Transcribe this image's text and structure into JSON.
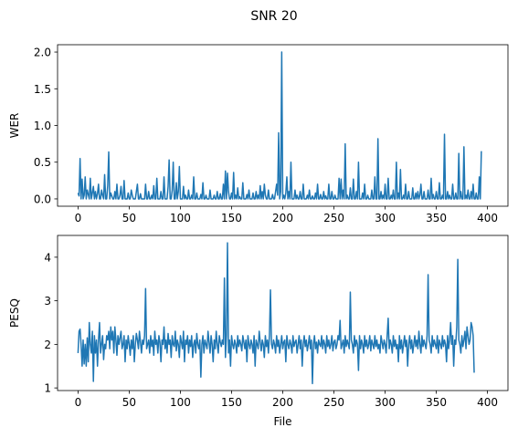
{
  "figure": {
    "suptitle": "SNR 20"
  },
  "chart_data": [
    {
      "type": "line",
      "title": "",
      "xlabel": "",
      "ylabel": "WER",
      "xlim": [
        -20,
        420
      ],
      "ylim": [
        -0.1,
        2.1
      ],
      "xticks": [
        0,
        50,
        100,
        150,
        200,
        250,
        300,
        350,
        400
      ],
      "yticks": [
        0.0,
        0.5,
        1.0,
        1.5,
        2.0
      ],
      "ytick_labels": [
        "0.0",
        "0.5",
        "1.0",
        "1.5",
        "2.0"
      ],
      "color": "#1f77b4",
      "series": [
        {
          "x_start": 0,
          "x_step": 1,
          "values": [
            0.08,
            0.04,
            0.55,
            0.0,
            0.27,
            0.0,
            0.05,
            0.3,
            0.0,
            0.12,
            0.06,
            0.0,
            0.28,
            0.0,
            0.08,
            0.17,
            0.0,
            0.1,
            0.0,
            0.07,
            0.2,
            0.0,
            0.0,
            0.12,
            0.05,
            0.0,
            0.33,
            0.0,
            0.0,
            0.18,
            0.64,
            0.0,
            0.08,
            0.04,
            0.0,
            0.0,
            0.1,
            0.0,
            0.2,
            0.0,
            0.0,
            0.05,
            0.17,
            0.0,
            0.0,
            0.25,
            0.0,
            0.0,
            0.0,
            0.08,
            0.0,
            0.0,
            0.12,
            0.05,
            0.0,
            0.0,
            0.0,
            0.1,
            0.2,
            0.0,
            0.0,
            0.07,
            0.0,
            0.0,
            0.0,
            0.0,
            0.2,
            0.0,
            0.0,
            0.1,
            0.0,
            0.0,
            0.05,
            0.0,
            0.18,
            0.0,
            0.0,
            0.28,
            0.0,
            0.0,
            0.0,
            0.1,
            0.0,
            0.0,
            0.3,
            0.0,
            0.0,
            0.0,
            0.17,
            0.53,
            0.0,
            0.0,
            0.12,
            0.5,
            0.0,
            0.0,
            0.22,
            0.0,
            0.1,
            0.44,
            0.0,
            0.0,
            0.0,
            0.17,
            0.0,
            0.05,
            0.0,
            0.0,
            0.12,
            0.0,
            0.0,
            0.05,
            0.0,
            0.3,
            0.0,
            0.0,
            0.08,
            0.0,
            0.0,
            0.0,
            0.06,
            0.0,
            0.22,
            0.0,
            0.0,
            0.05,
            0.0,
            0.0,
            0.0,
            0.12,
            0.0,
            0.0,
            0.0,
            0.05,
            0.0,
            0.0,
            0.1,
            0.0,
            0.0,
            0.07,
            0.0,
            0.0,
            0.2,
            0.0,
            0.38,
            0.0,
            0.35,
            0.1,
            0.0,
            0.0,
            0.08,
            0.0,
            0.36,
            0.0,
            0.05,
            0.0,
            0.15,
            0.0,
            0.03,
            0.0,
            0.0,
            0.22,
            0.0,
            0.0,
            0.0,
            0.06,
            0.0,
            0.12,
            0.0,
            0.0,
            0.0,
            0.08,
            0.0,
            0.0,
            0.1,
            0.0,
            0.05,
            0.0,
            0.18,
            0.0,
            0.1,
            0.0,
            0.2,
            0.05,
            0.0,
            0.0,
            0.12,
            0.0,
            0.0,
            0.0,
            0.06,
            0.0,
            0.0,
            0.1,
            0.2,
            0.05,
            0.9,
            0.0,
            0.1,
            2.0,
            0.0,
            0.05,
            0.0,
            0.08,
            0.3,
            0.0,
            0.1,
            0.0,
            0.5,
            0.0,
            0.0,
            0.0,
            0.12,
            0.0,
            0.05,
            0.0,
            0.0,
            0.1,
            0.0,
            0.0,
            0.2,
            0.0,
            0.0,
            0.0,
            0.05,
            0.0,
            0.12,
            0.0,
            0.0,
            0.04,
            0.0,
            0.0,
            0.08,
            0.0,
            0.2,
            0.0,
            0.0,
            0.06,
            0.0,
            0.0,
            0.1,
            0.0,
            0.04,
            0.0,
            0.0,
            0.2,
            0.0,
            0.0,
            0.1,
            0.0,
            0.0,
            0.05,
            0.0,
            0.0,
            0.0,
            0.28,
            0.0,
            0.27,
            0.0,
            0.12,
            0.0,
            0.75,
            0.0,
            0.05,
            0.0,
            0.0,
            0.15,
            0.0,
            0.0,
            0.27,
            0.0,
            0.0,
            0.1,
            0.0,
            0.5,
            0.0,
            0.0,
            0.0,
            0.08,
            0.0,
            0.2,
            0.0,
            0.0,
            0.05,
            0.0,
            0.0,
            0.0,
            0.12,
            0.0,
            0.0,
            0.3,
            0.0,
            0.0,
            0.82,
            0.0,
            0.0,
            0.1,
            0.0,
            0.05,
            0.0,
            0.2,
            0.0,
            0.0,
            0.28,
            0.0,
            0.0,
            0.05,
            0.0,
            0.12,
            0.0,
            0.0,
            0.5,
            0.0,
            0.08,
            0.0,
            0.4,
            0.0,
            0.0,
            0.05,
            0.0,
            0.2,
            0.0,
            0.0,
            0.1,
            0.0,
            0.0,
            0.0,
            0.15,
            0.0,
            0.0,
            0.08,
            0.0,
            0.1,
            0.0,
            0.05,
            0.2,
            0.0,
            0.0,
            0.1,
            0.0,
            0.0,
            0.0,
            0.12,
            0.0,
            0.0,
            0.28,
            0.0,
            0.06,
            0.0,
            0.0,
            0.1,
            0.0,
            0.0,
            0.22,
            0.0,
            0.0,
            0.05,
            0.0,
            0.88,
            0.0,
            0.0,
            0.1,
            0.0,
            0.05,
            0.0,
            0.0,
            0.2,
            0.0,
            0.0,
            0.08,
            0.0,
            0.0,
            0.62,
            0.0,
            0.1,
            0.0,
            0.0,
            0.71,
            0.0,
            0.05,
            0.0,
            0.12,
            0.0,
            0.0,
            0.1,
            0.0,
            0.2,
            0.0,
            0.0,
            0.08,
            0.0,
            0.0,
            0.3,
            0.0,
            0.65
          ]
        }
      ]
    },
    {
      "type": "line",
      "title": "",
      "xlabel": "File",
      "ylabel": "PESQ",
      "xlim": [
        -20,
        420
      ],
      "ylim": [
        0.94,
        4.5
      ],
      "xticks": [
        0,
        50,
        100,
        150,
        200,
        250,
        300,
        350,
        400
      ],
      "yticks": [
        1,
        2,
        3,
        4
      ],
      "ytick_labels": [
        "1",
        "2",
        "3",
        "4"
      ],
      "color": "#1f77b4",
      "series": [
        {
          "x_start": 0,
          "x_step": 1,
          "values": [
            1.8,
            2.3,
            2.35,
            2.0,
            1.5,
            2.1,
            1.55,
            2.0,
            1.5,
            2.15,
            1.6,
            2.5,
            2.0,
            1.8,
            2.3,
            1.15,
            2.2,
            1.8,
            2.1,
            1.5,
            2.1,
            2.5,
            1.8,
            2.0,
            2.2,
            1.65,
            2.0,
            1.9,
            2.2,
            2.1,
            2.3,
            1.9,
            2.4,
            2.1,
            2.3,
            1.8,
            2.4,
            2.1,
            1.75,
            2.2,
            2.0,
            2.15,
            2.3,
            1.9,
            2.0,
            2.2,
            1.6,
            2.1,
            1.9,
            2.2,
            2.0,
            1.75,
            2.1,
            1.9,
            2.2,
            1.6,
            2.0,
            2.25,
            2.1,
            1.9,
            2.3,
            2.05,
            1.8,
            2.1,
            2.0,
            2.2,
            3.28,
            1.9,
            2.0,
            2.1,
            1.8,
            2.2,
            1.95,
            2.1,
            1.75,
            2.3,
            2.0,
            2.1,
            1.8,
            2.2,
            2.05,
            1.6,
            2.1,
            2.0,
            2.4,
            1.9,
            2.1,
            1.8,
            2.25,
            2.0,
            2.1,
            1.7,
            2.2,
            2.0,
            1.95,
            2.3,
            1.85,
            2.1,
            2.0,
            1.7,
            2.2,
            2.05,
            1.9,
            2.3,
            1.6,
            2.1,
            2.0,
            2.2,
            1.8,
            2.1,
            1.95,
            2.2,
            1.7,
            2.0,
            2.1,
            1.8,
            2.25,
            2.0,
            1.9,
            2.1,
            1.25,
            2.0,
            2.2,
            1.8,
            2.1,
            2.0,
            1.9,
            2.3,
            2.05,
            1.8,
            2.2,
            2.0,
            1.6,
            2.1,
            1.9,
            2.3,
            2.0,
            1.8,
            2.2,
            2.05,
            1.95,
            2.1,
            2.0,
            3.52,
            1.7,
            2.2,
            4.33,
            1.8,
            2.1,
            1.5,
            2.2,
            2.0,
            1.9,
            2.1,
            2.0,
            1.8,
            2.2,
            1.95,
            2.1,
            2.0,
            1.85,
            2.2,
            2.05,
            1.9,
            2.1,
            1.6,
            2.2,
            2.0,
            1.9,
            2.1,
            2.0,
            1.8,
            2.2,
            1.5,
            2.1,
            2.0,
            1.9,
            2.3,
            2.05,
            1.85,
            2.1,
            2.0,
            1.7,
            2.2,
            1.95,
            2.1,
            1.8,
            2.2,
            3.25,
            2.0,
            1.9,
            2.1,
            2.0,
            1.8,
            2.2,
            1.95,
            2.1,
            1.8,
            2.0,
            2.2,
            1.9,
            2.05,
            2.1,
            1.6,
            2.2,
            2.0,
            1.9,
            2.1,
            2.0,
            1.8,
            2.2,
            1.95,
            2.05,
            2.1,
            1.8,
            2.0,
            2.2,
            1.9,
            2.1,
            1.5,
            2.0,
            2.2,
            1.95,
            2.1,
            1.85,
            2.0,
            2.2,
            1.9,
            2.1,
            1.1,
            2.0,
            2.2,
            1.9,
            2.05,
            1.8,
            2.1,
            2.0,
            1.95,
            2.2,
            1.9,
            2.1,
            2.0,
            1.8,
            2.2,
            1.95,
            2.1,
            1.9,
            2.0,
            2.2,
            1.85,
            2.05,
            2.1,
            1.9,
            2.0,
            2.2,
            2.1,
            2.55,
            1.9,
            2.0,
            2.1,
            1.8,
            2.2,
            1.95,
            2.1,
            2.0,
            1.9,
            3.2,
            2.1,
            2.0,
            1.8,
            2.2,
            1.95,
            2.1,
            2.0,
            1.4,
            2.2,
            1.9,
            2.1,
            2.0,
            1.8,
            2.2,
            1.95,
            2.1,
            1.9,
            2.0,
            2.2,
            1.85,
            2.1,
            2.0,
            1.9,
            2.2,
            1.95,
            2.1,
            1.9,
            2.0,
            1.8,
            2.2,
            2.05,
            1.9,
            2.1,
            2.0,
            1.8,
            2.2,
            2.6,
            1.9,
            2.1,
            2.0,
            1.8,
            2.2,
            1.95,
            2.1,
            1.9,
            2.0,
            1.6,
            2.2,
            1.9,
            2.1,
            1.8,
            2.0,
            2.2,
            1.95,
            2.1,
            1.5,
            2.0,
            2.2,
            1.9,
            2.1,
            1.8,
            2.0,
            2.2,
            1.95,
            2.1,
            1.9,
            2.3,
            2.0,
            1.8,
            2.2,
            1.95,
            2.1,
            2.0,
            1.9,
            2.2,
            3.6,
            2.1,
            2.0,
            1.8,
            2.2,
            1.95,
            2.1,
            2.0,
            1.9,
            2.2,
            1.8,
            2.1,
            2.0,
            1.9,
            2.2,
            1.95,
            2.1,
            2.0,
            1.6,
            2.2,
            1.9,
            2.1,
            2.5,
            2.0,
            2.2,
            1.5,
            2.1,
            2.0,
            2.4,
            3.95,
            2.1,
            2.0,
            1.8,
            2.2,
            1.95,
            2.1,
            2.3,
            1.9,
            2.4,
            2.2,
            2.0,
            2.1,
            2.5,
            2.4,
            2.2,
            1.35
          ]
        }
      ]
    }
  ]
}
